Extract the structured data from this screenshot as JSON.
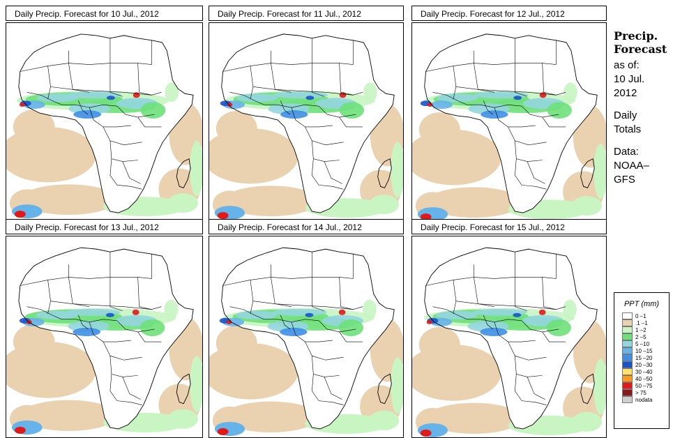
{
  "panels": [
    {
      "title": "Daily Precip. Forecast for  10 Jul., 2012"
    },
    {
      "title": "Daily Precip. Forecast for  11 Jul., 2012"
    },
    {
      "title": "Daily Precip. Forecast for  12 Jul., 2012"
    },
    {
      "title": "Daily Precip. Forecast for  13 Jul., 2012"
    },
    {
      "title": "Daily Precip. Forecast for  14 Jul., 2012"
    },
    {
      "title": "Daily Precip. Forecast for  15 Jul., 2012"
    }
  ],
  "side": {
    "heading_line1": "Precip.",
    "heading_line2": "Forecast",
    "asof_label": "as of:",
    "date_line1": "10 Jul.",
    "date_line2": "2012",
    "totals_line1": "Daily",
    "totals_line2": "Totals",
    "data_line1": "Data:",
    "data_line2": "NOAA–",
    "data_line3": "GFS"
  },
  "legend": {
    "title": "PPT (mm)",
    "classes": [
      {
        "label": "0 –1",
        "color": "#ffffff"
      },
      {
        "label": ".1 –1",
        "color": "#ead2b0"
      },
      {
        "label": "1 –2",
        "color": "#c8f5c2"
      },
      {
        "label": "2 –5",
        "color": "#6ee07a"
      },
      {
        "label": "5 –10",
        "color": "#93d6df"
      },
      {
        "label": "10 –15",
        "color": "#66b3ea"
      },
      {
        "label": "15 –20",
        "color": "#3f8fe6"
      },
      {
        "label": "20 –30",
        "color": "#1a52cc"
      },
      {
        "label": "30 –40",
        "color": "#ffe266"
      },
      {
        "label": "40 –50",
        "color": "#ff9a1a"
      },
      {
        "label": "50 –75",
        "color": "#e01a1a"
      },
      {
        "label": "> 75",
        "color": "#8a1a1a"
      },
      {
        "label": "nodata",
        "color": "#cfcfcf"
      }
    ]
  }
}
